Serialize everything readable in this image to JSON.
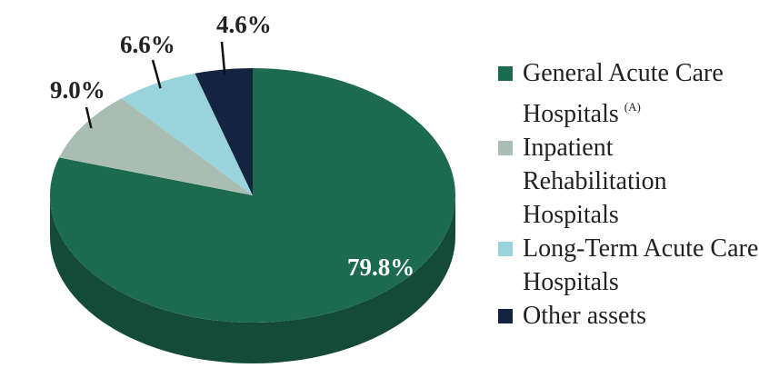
{
  "chart_data": {
    "type": "pie",
    "series": [
      {
        "name": "General Acute Care Hospitals",
        "note": "(A)",
        "color": "#1c6b50"
      },
      {
        "name": "Inpatient Rehabilitation Hospitals",
        "color": "#a9bdb3"
      },
      {
        "name": "Long-Term Acute Care Hospitals",
        "color": "#99d3dc"
      },
      {
        "name": "Other assets",
        "color": "#14233f"
      }
    ],
    "values": [
      79.8,
      9.0,
      6.6,
      4.6
    ],
    "value_labels": [
      "79.8%",
      "9.0%",
      "6.6%",
      "4.6%"
    ]
  }
}
